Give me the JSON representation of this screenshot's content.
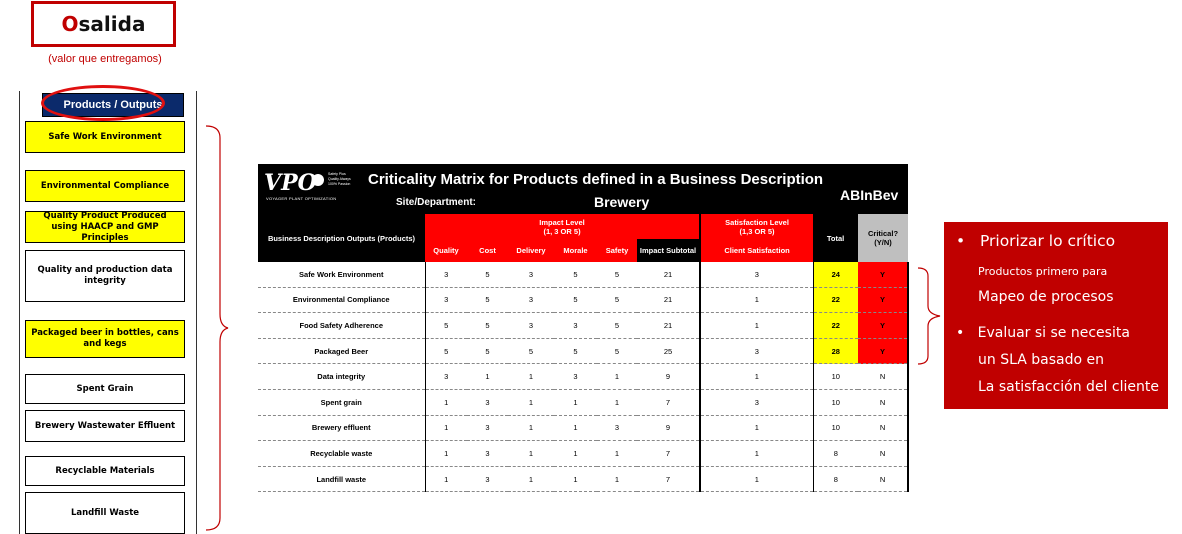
{
  "title": {
    "first_letter": "O",
    "rest": "salida",
    "subtitle": "(valor que entregamos)"
  },
  "outputs_panel": {
    "header": "Products / Outputs",
    "items": [
      "Safe Work Environment",
      "Environmental Compliance",
      "Quality Product Produced using HAACP and GMP Principles",
      "Quality and production data integrity",
      "Packaged beer in bottles, cans and kegs",
      "Spent Grain",
      "Brewery Wastewater Effluent",
      "Recyclable Materials",
      "Landfill Waste"
    ]
  },
  "matrix": {
    "logo": "VPO",
    "logo_sub": "VOYAGER PLANT OPTIMIZATION",
    "logo_lines": [
      "Safety Plus",
      "Quality Always",
      "100% Passion"
    ],
    "title": "Criticality Matrix for Products defined in a Business Description",
    "site_label": "Site/Department:",
    "site_value": "Brewery",
    "brand": "ABInBev",
    "headers": {
      "outputs": "Business Description Outputs (Products)",
      "impact_level": "Impact Level",
      "impact_scale": "(1, 3 OR 5)",
      "satisfaction_level": "Satisfaction Level",
      "satisfaction_scale": "(1,3 OR 5)",
      "total": "Total",
      "critical": "Critical?",
      "critical_yn": "(Y/N)",
      "quality": "Quality",
      "cost": "Cost",
      "delivery": "Delivery",
      "morale": "Morale",
      "safety": "Safety",
      "impact_subtotal": "Impact Subtotal",
      "client_satisfaction": "Client Satisfaction"
    },
    "rows": [
      {
        "name": "Safe Work Environment",
        "quality": "3",
        "cost": "5",
        "delivery": "3",
        "morale": "5",
        "safety": "5",
        "subtotal": "21",
        "client": "3",
        "total": "24",
        "critical": "Y"
      },
      {
        "name": "Environmental Compliance",
        "quality": "3",
        "cost": "5",
        "delivery": "3",
        "morale": "5",
        "safety": "5",
        "subtotal": "21",
        "client": "1",
        "total": "22",
        "critical": "Y"
      },
      {
        "name": "Food Safety Adherence",
        "quality": "5",
        "cost": "5",
        "delivery": "3",
        "morale": "3",
        "safety": "5",
        "subtotal": "21",
        "client": "1",
        "total": "22",
        "critical": "Y"
      },
      {
        "name": "Packaged Beer",
        "quality": "5",
        "cost": "5",
        "delivery": "5",
        "morale": "5",
        "safety": "5",
        "subtotal": "25",
        "client": "3",
        "total": "28",
        "critical": "Y"
      },
      {
        "name": "Data integrity",
        "quality": "3",
        "cost": "1",
        "delivery": "1",
        "morale": "3",
        "safety": "1",
        "subtotal": "9",
        "client": "1",
        "total": "10",
        "critical": "N"
      },
      {
        "name": "Spent grain",
        "quality": "1",
        "cost": "3",
        "delivery": "1",
        "morale": "1",
        "safety": "1",
        "subtotal": "7",
        "client": "3",
        "total": "10",
        "critical": "N"
      },
      {
        "name": "Brewery effluent",
        "quality": "1",
        "cost": "3",
        "delivery": "1",
        "morale": "1",
        "safety": "3",
        "subtotal": "9",
        "client": "1",
        "total": "10",
        "critical": "N"
      },
      {
        "name": "Recyclable waste",
        "quality": "1",
        "cost": "3",
        "delivery": "1",
        "morale": "1",
        "safety": "1",
        "subtotal": "7",
        "client": "1",
        "total": "8",
        "critical": "N"
      },
      {
        "name": "Landfill waste",
        "quality": "1",
        "cost": "3",
        "delivery": "1",
        "morale": "1",
        "safety": "1",
        "subtotal": "7",
        "client": "1",
        "total": "8",
        "critical": "N"
      }
    ]
  },
  "callout": {
    "bullet1": "Priorizar lo crítico",
    "line2": "Productos primero para",
    "line3": "Mapeo de procesos",
    "bullet2": "Evaluar si se necesita",
    "line5": "un SLA basado en",
    "line6": "La satisfacción del cliente"
  },
  "colors": {
    "accent_red": "#c00000",
    "yellow": "#ffff00",
    "navy": "#0b2a6b",
    "red": "#ff0000"
  }
}
